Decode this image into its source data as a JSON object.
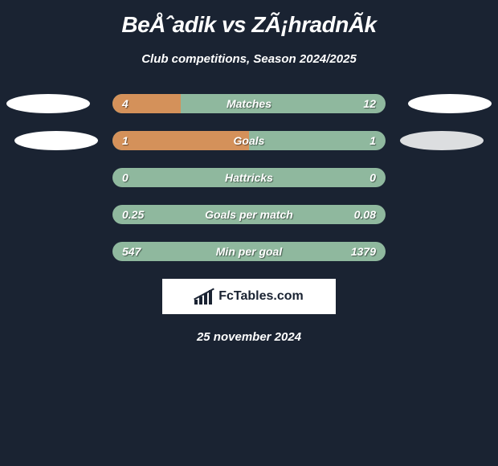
{
  "title": "BeÅˆadik vs ZÃ¡hradnÃ­k",
  "subtitle": "Club competitions, Season 2024/2025",
  "date": "25 november 2024",
  "logo_text": "FcTables.com",
  "colors": {
    "background": "#1a2332",
    "bar_base": "#8fb89e",
    "bar_fill": "#d4915a",
    "ellipse": "#ffffff",
    "text": "#ffffff"
  },
  "stats": [
    {
      "label": "Matches",
      "left_value": "4",
      "right_value": "12",
      "fill_percent": 25,
      "show_left_ellipse": true,
      "show_right_ellipse": true,
      "ellipse_offset": false
    },
    {
      "label": "Goals",
      "left_value": "1",
      "right_value": "1",
      "fill_percent": 50,
      "show_left_ellipse": true,
      "show_right_ellipse": true,
      "ellipse_offset": true
    },
    {
      "label": "Hattricks",
      "left_value": "0",
      "right_value": "0",
      "fill_percent": 0,
      "show_left_ellipse": false,
      "show_right_ellipse": false,
      "ellipse_offset": false
    },
    {
      "label": "Goals per match",
      "left_value": "0.25",
      "right_value": "0.08",
      "fill_percent": 0,
      "show_left_ellipse": false,
      "show_right_ellipse": false,
      "ellipse_offset": false
    },
    {
      "label": "Min per goal",
      "left_value": "547",
      "right_value": "1379",
      "fill_percent": 0,
      "show_left_ellipse": false,
      "show_right_ellipse": false,
      "ellipse_offset": false
    }
  ]
}
